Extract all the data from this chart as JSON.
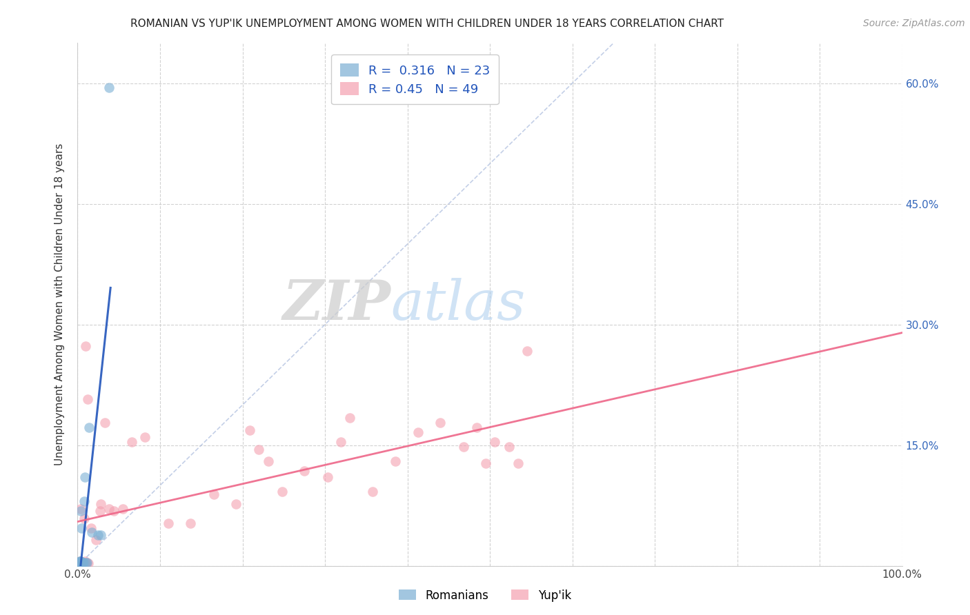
{
  "title": "ROMANIAN VS YUP'IK UNEMPLOYMENT AMONG WOMEN WITH CHILDREN UNDER 18 YEARS CORRELATION CHART",
  "source": "Source: ZipAtlas.com",
  "ylabel": "Unemployment Among Women with Children Under 18 years",
  "xlabel": "",
  "xlim": [
    0.0,
    1.0
  ],
  "ylim": [
    0.0,
    0.65
  ],
  "xticks": [
    0.0,
    0.1,
    0.2,
    0.3,
    0.4,
    0.5,
    0.6,
    0.7,
    0.8,
    0.9,
    1.0
  ],
  "xticklabels": [
    "0.0%",
    "",
    "",
    "",
    "",
    "",
    "",
    "",
    "",
    "",
    "100.0%"
  ],
  "yticks": [
    0.0,
    0.15,
    0.3,
    0.45,
    0.6
  ],
  "yticklabels": [
    "",
    "15.0%",
    "30.0%",
    "45.0%",
    "60.0%"
  ],
  "romanian_R": 0.316,
  "romanian_N": 23,
  "yupik_R": 0.45,
  "yupik_N": 49,
  "romanian_color": "#7BAFD4",
  "yupik_color": "#F4A0B0",
  "romanian_line_color": "#2255BB",
  "yupik_line_color": "#EE6688",
  "legend_label_1": "Romanians",
  "legend_label_2": "Yup'ik",
  "romanian_x": [
    0.002,
    0.002,
    0.003,
    0.003,
    0.003,
    0.003,
    0.004,
    0.004,
    0.004,
    0.004,
    0.005,
    0.005,
    0.006,
    0.007,
    0.008,
    0.009,
    0.01,
    0.011,
    0.014,
    0.017,
    0.025,
    0.028,
    0.038
  ],
  "romanian_y": [
    0.003,
    0.004,
    0.004,
    0.005,
    0.006,
    0.006,
    0.004,
    0.005,
    0.006,
    0.068,
    0.003,
    0.047,
    0.004,
    0.004,
    0.08,
    0.11,
    0.004,
    0.004,
    0.172,
    0.042,
    0.038,
    0.038,
    0.595
  ],
  "yupik_x": [
    0.002,
    0.003,
    0.004,
    0.004,
    0.005,
    0.005,
    0.006,
    0.007,
    0.008,
    0.009,
    0.009,
    0.01,
    0.01,
    0.011,
    0.012,
    0.013,
    0.016,
    0.022,
    0.027,
    0.028,
    0.033,
    0.038,
    0.044,
    0.055,
    0.066,
    0.082,
    0.11,
    0.137,
    0.165,
    0.192,
    0.209,
    0.22,
    0.231,
    0.248,
    0.275,
    0.303,
    0.319,
    0.33,
    0.358,
    0.385,
    0.413,
    0.44,
    0.468,
    0.484,
    0.495,
    0.506,
    0.523,
    0.534,
    0.545
  ],
  "yupik_y": [
    0.003,
    0.006,
    0.004,
    0.071,
    0.005,
    0.004,
    0.004,
    0.003,
    0.059,
    0.003,
    0.006,
    0.003,
    0.273,
    0.004,
    0.207,
    0.003,
    0.047,
    0.032,
    0.068,
    0.077,
    0.178,
    0.071,
    0.068,
    0.071,
    0.154,
    0.16,
    0.053,
    0.053,
    0.089,
    0.077,
    0.169,
    0.145,
    0.13,
    0.092,
    0.118,
    0.11,
    0.154,
    0.184,
    0.092,
    0.13,
    0.166,
    0.178,
    0.148,
    0.172,
    0.127,
    0.154,
    0.148,
    0.127,
    0.267
  ]
}
